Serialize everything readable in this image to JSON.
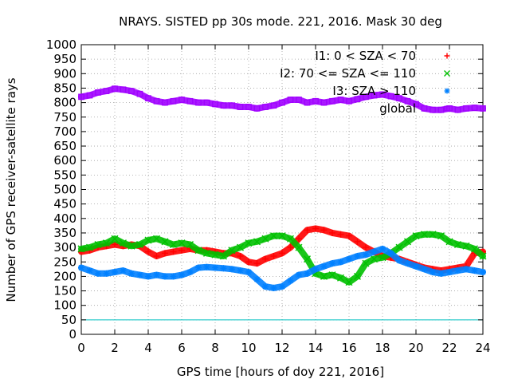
{
  "chart_data": {
    "type": "scatter",
    "title": "NRAYS. SISTED pp 30s mode. 221, 2016. Mask 30 deg",
    "xlabel": "GPS time [hours of doy 221, 2016]",
    "ylabel": "Number of GPS receiver-satellite rays",
    "xlim": [
      0,
      24
    ],
    "ylim": [
      0,
      1000
    ],
    "xticks": [
      0,
      2,
      4,
      6,
      8,
      10,
      12,
      14,
      16,
      18,
      20,
      22,
      24
    ],
    "yticks": [
      0,
      50,
      100,
      150,
      200,
      250,
      300,
      350,
      400,
      450,
      500,
      550,
      600,
      650,
      700,
      750,
      800,
      850,
      900,
      950,
      1000
    ],
    "grid": true,
    "legend_position": "top-right",
    "reference_line": {
      "y": 50,
      "color": "#00c0c0"
    },
    "series": [
      {
        "name": "I1: 0 < SZA < 70",
        "marker": "+",
        "color": "#ff0000",
        "x": [
          0,
          0.5,
          1,
          1.5,
          2,
          2.5,
          3,
          3.5,
          4,
          4.5,
          5,
          5.5,
          6,
          6.5,
          7,
          7.5,
          8,
          8.5,
          9,
          9.5,
          10,
          10.5,
          11,
          11.5,
          12,
          12.5,
          13,
          13.5,
          14,
          14.5,
          15,
          15.5,
          16,
          16.5,
          17,
          17.5,
          18,
          18.5,
          19,
          19.5,
          20,
          20.5,
          21,
          21.5,
          22,
          22.5,
          23,
          23.5,
          24
        ],
        "values": [
          285,
          290,
          300,
          305,
          310,
          305,
          310,
          305,
          285,
          270,
          280,
          285,
          290,
          295,
          290,
          290,
          285,
          280,
          280,
          270,
          250,
          245,
          260,
          270,
          280,
          300,
          330,
          360,
          365,
          360,
          350,
          345,
          340,
          320,
          300,
          285,
          270,
          265,
          260,
          250,
          240,
          230,
          225,
          220,
          225,
          230,
          235,
          280,
          285
        ]
      },
      {
        "name": "I2: 70 <= SZA <= 110",
        "marker": "x",
        "color": "#00c000",
        "x": [
          0,
          0.5,
          1,
          1.5,
          2,
          2.5,
          3,
          3.5,
          4,
          4.5,
          5,
          5.5,
          6,
          6.5,
          7,
          7.5,
          8,
          8.5,
          9,
          9.5,
          10,
          10.5,
          11,
          11.5,
          12,
          12.5,
          13,
          13.5,
          14,
          14.5,
          15,
          15.5,
          16,
          16.5,
          17,
          17.5,
          18,
          18.5,
          19,
          19.5,
          20,
          20.5,
          21,
          21.5,
          22,
          22.5,
          23,
          23.5,
          24
        ],
        "values": [
          295,
          300,
          310,
          315,
          330,
          315,
          305,
          310,
          325,
          330,
          320,
          310,
          315,
          310,
          290,
          280,
          275,
          270,
          290,
          300,
          315,
          320,
          330,
          340,
          340,
          330,
          300,
          260,
          210,
          200,
          205,
          195,
          180,
          200,
          245,
          260,
          265,
          280,
          300,
          320,
          340,
          345,
          345,
          340,
          320,
          310,
          305,
          295,
          270
        ]
      },
      {
        "name": "I3: SZA > 110",
        "marker": "*",
        "color": "#0080ff",
        "x": [
          0,
          0.5,
          1,
          1.5,
          2,
          2.5,
          3,
          3.5,
          4,
          4.5,
          5,
          5.5,
          6,
          6.5,
          7,
          7.5,
          8,
          8.5,
          9,
          9.5,
          10,
          10.5,
          11,
          11.5,
          12,
          12.5,
          13,
          13.5,
          14,
          14.5,
          15,
          15.5,
          16,
          16.5,
          17,
          17.5,
          18,
          18.5,
          19,
          19.5,
          20,
          20.5,
          21,
          21.5,
          22,
          22.5,
          23,
          23.5,
          24
        ],
        "values": [
          230,
          220,
          210,
          210,
          215,
          220,
          210,
          205,
          200,
          205,
          200,
          200,
          205,
          215,
          230,
          232,
          230,
          228,
          225,
          220,
          215,
          190,
          165,
          160,
          165,
          185,
          205,
          210,
          225,
          235,
          245,
          250,
          260,
          270,
          275,
          285,
          295,
          280,
          255,
          245,
          235,
          225,
          215,
          210,
          215,
          220,
          225,
          220,
          215
        ]
      },
      {
        "name": "global",
        "marker": "square",
        "color": "#a000ff",
        "x": [
          0,
          0.5,
          1,
          1.5,
          2,
          2.5,
          3,
          3.5,
          4,
          4.5,
          5,
          5.5,
          6,
          6.5,
          7,
          7.5,
          8,
          8.5,
          9,
          9.5,
          10,
          10.5,
          11,
          11.5,
          12,
          12.5,
          13,
          13.5,
          14,
          14.5,
          15,
          15.5,
          16,
          16.5,
          17,
          17.5,
          18,
          18.5,
          19,
          19.5,
          20,
          20.5,
          21,
          21.5,
          22,
          22.5,
          23,
          23.5,
          24
        ],
        "values": [
          820,
          825,
          835,
          840,
          848,
          845,
          840,
          830,
          815,
          805,
          800,
          805,
          810,
          805,
          800,
          800,
          795,
          790,
          790,
          785,
          785,
          780,
          785,
          790,
          800,
          810,
          810,
          800,
          805,
          800,
          805,
          810,
          805,
          812,
          820,
          825,
          828,
          822,
          815,
          805,
          795,
          780,
          775,
          775,
          780,
          775,
          780,
          782,
          780
        ]
      }
    ]
  }
}
